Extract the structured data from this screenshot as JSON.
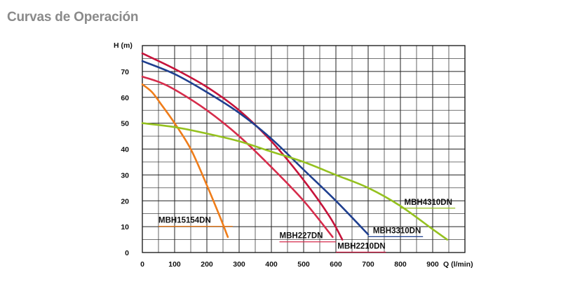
{
  "page": {
    "title": "Curvas de Operación"
  },
  "chart_data": {
    "type": "line",
    "title": "",
    "xlabel": "Q (l/min)",
    "ylabel": "H (m)",
    "xlim": [
      0,
      1000
    ],
    "ylim": [
      0,
      80
    ],
    "xticks": [
      0,
      100,
      200,
      300,
      400,
      500,
      600,
      700,
      800,
      900
    ],
    "yticks": [
      0,
      10,
      20,
      30,
      40,
      50,
      60,
      70
    ],
    "grid": true,
    "series": [
      {
        "name": "MBH15154DN",
        "color": "#ef7d1a",
        "x": [
          0,
          30,
          60,
          100,
          150,
          200,
          240,
          265
        ],
        "y": [
          65,
          62,
          57,
          50,
          40,
          26,
          14,
          6
        ]
      },
      {
        "name": "MBH227DN",
        "color": "#d62c4b",
        "x": [
          0,
          50,
          100,
          200,
          300,
          400,
          500,
          590
        ],
        "y": [
          68,
          66,
          63,
          55,
          45,
          33,
          20,
          6
        ]
      },
      {
        "name": "MBH2210DN",
        "color": "#c6133a",
        "x": [
          0,
          100,
          200,
          300,
          400,
          500,
          580,
          620
        ],
        "y": [
          77,
          71,
          64,
          55,
          43,
          28,
          14,
          5
        ]
      },
      {
        "name": "MBH3310DN",
        "color": "#1f3f8f",
        "x": [
          0,
          100,
          200,
          300,
          400,
          500,
          600,
          700
        ],
        "y": [
          74,
          69,
          62,
          54,
          44,
          32,
          20,
          7
        ]
      },
      {
        "name": "MBH4310DN",
        "color": "#95c11f",
        "x": [
          0,
          100,
          200,
          300,
          400,
          500,
          600,
          700,
          800,
          900,
          945
        ],
        "y": [
          50,
          48.5,
          46,
          43,
          39,
          35,
          30,
          25,
          18,
          9,
          5
        ]
      }
    ]
  }
}
